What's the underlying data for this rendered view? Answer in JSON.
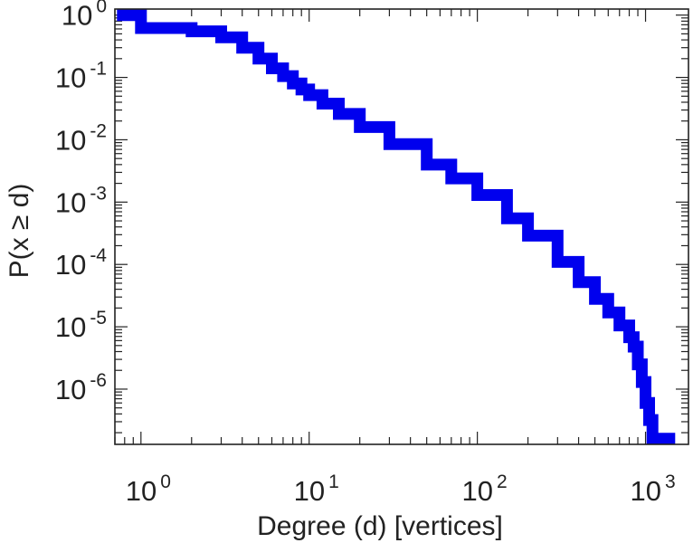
{
  "chart_data": {
    "type": "line",
    "title": "",
    "xlabel": "Degree (d) [vertices]",
    "ylabel": "P(x ≥ d)",
    "x_scale": "log",
    "y_scale": "log",
    "xlim": [
      0.7,
      1800
    ],
    "ylim": [
      1.3e-07,
      1.25
    ],
    "x_tick_labels": [
      {
        "value": 1,
        "base": "10",
        "exp": "0"
      },
      {
        "value": 10,
        "base": "10",
        "exp": "1"
      },
      {
        "value": 100,
        "base": "10",
        "exp": "2"
      },
      {
        "value": 1000,
        "base": "10",
        "exp": "3"
      }
    ],
    "y_tick_labels": [
      {
        "value": 1,
        "base": "10",
        "exp": "0"
      },
      {
        "value": 0.1,
        "base": "10",
        "exp": "-1"
      },
      {
        "value": 0.01,
        "base": "10",
        "exp": "-2"
      },
      {
        "value": 0.001,
        "base": "10",
        "exp": "-3"
      },
      {
        "value": 0.0001,
        "base": "10",
        "exp": "-4"
      },
      {
        "value": 1e-05,
        "base": "10",
        "exp": "-5"
      },
      {
        "value": 1e-06,
        "base": "10",
        "exp": "-6"
      }
    ],
    "grid": false,
    "line_color": "#0000ee",
    "series": [
      {
        "step": true,
        "x": [
          0.72,
          1,
          2,
          3,
          4,
          5,
          6,
          7,
          8,
          9,
          10,
          12,
          15,
          20,
          30,
          50,
          70,
          100,
          150,
          200,
          300,
          400,
          500,
          600,
          700,
          800,
          850,
          900,
          950,
          1000,
          1050,
          1100,
          1500
        ],
        "y": [
          1,
          0.62,
          0.55,
          0.44,
          0.3,
          0.2,
          0.14,
          0.105,
          0.08,
          0.064,
          0.052,
          0.038,
          0.026,
          0.016,
          0.0085,
          0.004,
          0.0024,
          0.0013,
          0.00055,
          0.00029,
          0.00011,
          5.2e-05,
          2.8e-05,
          1.7e-05,
          1.05e-05,
          6.8e-06,
          4.8e-06,
          2.5e-06,
          1.3e-06,
          6e-07,
          3.2e-07,
          1.6e-07,
          1.6e-07
        ]
      }
    ]
  }
}
